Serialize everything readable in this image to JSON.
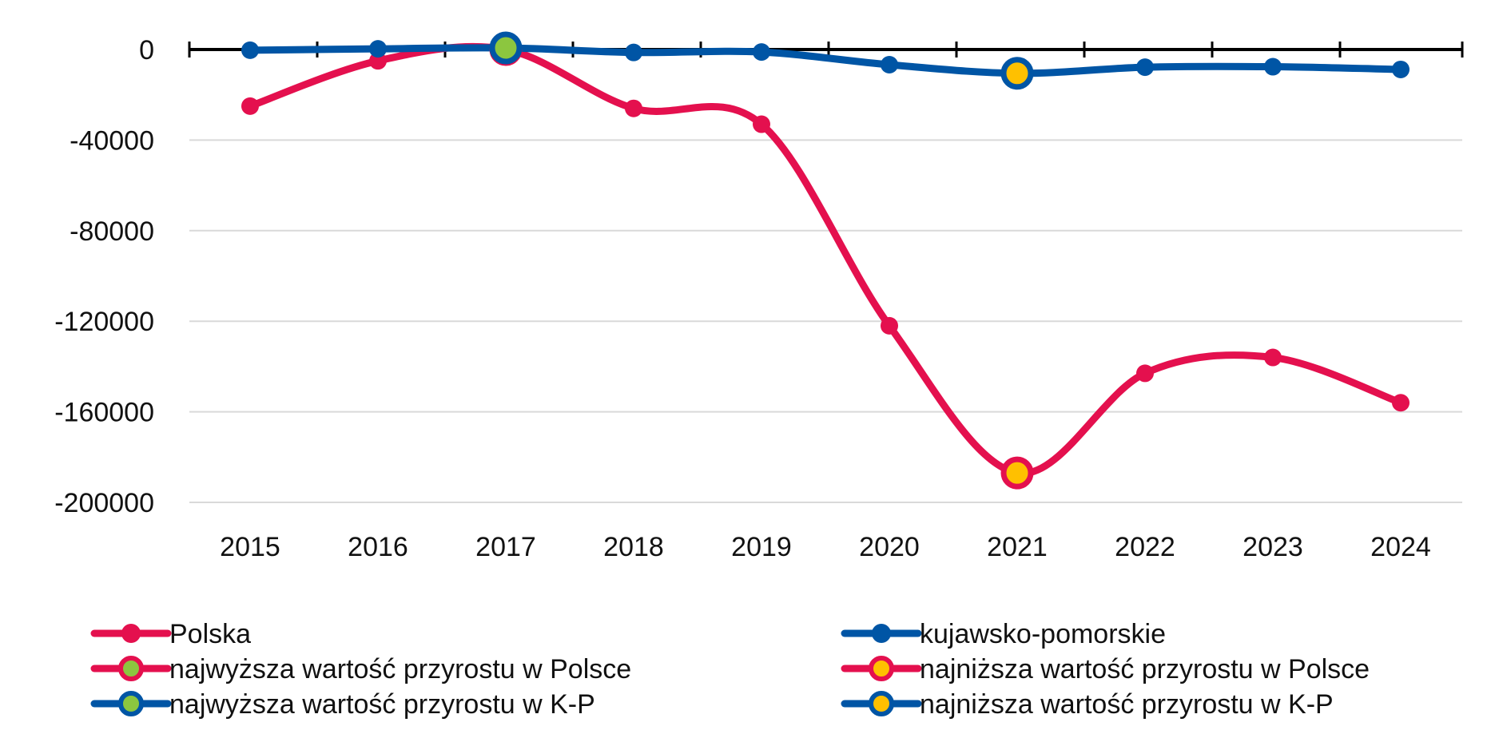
{
  "chart_data": {
    "type": "line",
    "title": "",
    "xlabel": "",
    "ylabel": "",
    "categories": [
      "2015",
      "2016",
      "2017",
      "2018",
      "2019",
      "2020",
      "2021",
      "2022",
      "2023",
      "2024"
    ],
    "ylim": [
      -200000,
      0
    ],
    "yticks": [
      0,
      -40000,
      -80000,
      -120000,
      -160000,
      -200000
    ],
    "ytick_labels": [
      "0",
      "-40000",
      "-80000",
      "-120000",
      "-160000",
      "-200000"
    ],
    "grid": true,
    "smooth": true,
    "legend_position": "bottom",
    "series": [
      {
        "name": "Polska",
        "color": "#e4104e",
        "values": [
          -25000,
          -5000,
          0,
          -26000,
          -33000,
          -122000,
          -187000,
          -143000,
          -136000,
          -156000
        ]
      },
      {
        "name": "kujawsko-pomorskie",
        "color": "#0055a5",
        "values": [
          -300,
          300,
          700,
          -1300,
          -1100,
          -6700,
          -10500,
          -7800,
          -7600,
          -8800
        ]
      }
    ],
    "highlights": [
      {
        "name": "najwyższa wartość przyrostu w Polsce",
        "series": 0,
        "category": "2017",
        "value": 0,
        "ring": "#e4104e",
        "fill": "#8cc63f"
      },
      {
        "name": "najniższa wartość przyrostu w Polsce",
        "series": 0,
        "category": "2021",
        "value": -187000,
        "ring": "#e4104e",
        "fill": "#ffc000"
      },
      {
        "name": "najwyższa wartość przyrostu w K-P",
        "series": 1,
        "category": "2017",
        "value": 700,
        "ring": "#0055a5",
        "fill": "#8cc63f"
      },
      {
        "name": "najniższa wartość przyrostu w K-P",
        "series": 1,
        "category": "2021",
        "value": -10500,
        "ring": "#0055a5",
        "fill": "#ffc000"
      }
    ],
    "legend": [
      {
        "label": "Polska",
        "line": "#e4104e",
        "dot": "#e4104e"
      },
      {
        "label": "kujawsko-pomorskie",
        "line": "#0055a5",
        "dot": "#0055a5"
      },
      {
        "label": "najwyższa wartość przyrostu w Polsce",
        "line": "#e4104e",
        "dot": "#8cc63f"
      },
      {
        "label": "najniższa wartość przyrostu w Polsce",
        "line": "#e4104e",
        "dot": "#ffc000"
      },
      {
        "label": "najwyższa wartość przyrostu w K-P",
        "line": "#0055a5",
        "dot": "#8cc63f"
      },
      {
        "label": "najniższa wartość przyrostu w K-P",
        "line": "#0055a5",
        "dot": "#ffc000"
      }
    ]
  }
}
